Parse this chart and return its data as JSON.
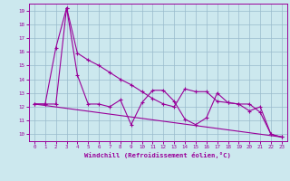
{
  "xlabel": "Windchill (Refroidissement éolien,°C)",
  "background_color": "#cce8ee",
  "line_color": "#990099",
  "grid_color": "#99bbcc",
  "xlim": [
    -0.5,
    23.5
  ],
  "ylim": [
    9.5,
    19.5
  ],
  "yticks": [
    10,
    11,
    12,
    13,
    14,
    15,
    16,
    17,
    18,
    19
  ],
  "xticks": [
    0,
    1,
    2,
    3,
    4,
    5,
    6,
    7,
    8,
    9,
    10,
    11,
    12,
    13,
    14,
    15,
    16,
    17,
    18,
    19,
    20,
    21,
    22,
    23
  ],
  "series1_x": [
    0,
    1,
    2,
    3,
    4,
    5,
    6,
    7,
    8,
    9,
    10,
    11,
    12,
    13,
    14,
    15,
    16,
    17,
    18,
    19,
    20,
    21,
    22,
    23
  ],
  "series1_y": [
    12.2,
    12.2,
    12.2,
    19.2,
    14.3,
    12.2,
    12.2,
    12.0,
    12.5,
    10.7,
    12.3,
    13.2,
    13.2,
    12.4,
    11.1,
    10.7,
    11.2,
    13.0,
    12.3,
    12.2,
    11.7,
    12.0,
    10.0,
    9.8
  ],
  "series2_x": [
    0,
    1,
    2,
    3,
    4,
    5,
    6,
    7,
    8,
    9,
    10,
    11,
    12,
    13,
    14,
    15,
    16,
    17,
    18,
    19,
    20,
    21,
    22,
    23
  ],
  "series2_y": [
    12.2,
    12.2,
    16.3,
    19.2,
    15.9,
    15.4,
    15.0,
    14.5,
    14.0,
    13.6,
    13.1,
    12.6,
    12.2,
    12.0,
    13.3,
    13.1,
    13.1,
    12.4,
    12.3,
    12.2,
    12.2,
    11.6,
    10.0,
    9.8
  ],
  "series3_x": [
    0,
    23
  ],
  "series3_y": [
    12.2,
    9.8
  ]
}
